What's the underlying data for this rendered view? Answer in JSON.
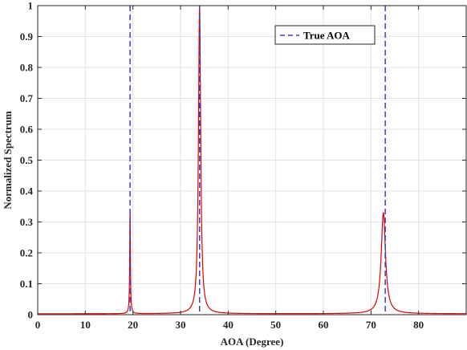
{
  "chart_data": {
    "type": "line",
    "xlabel": "AOA (Degree)",
    "ylabel": "Normalized Spectrum",
    "xlim": [
      0,
      90
    ],
    "ylim": [
      0,
      1
    ],
    "xticks": [
      0,
      10,
      20,
      30,
      40,
      50,
      60,
      70,
      80
    ],
    "yticks": [
      0,
      0.1,
      0.2,
      0.3,
      0.4,
      0.5,
      0.6,
      0.7,
      0.8,
      0.9,
      1
    ],
    "xtick_labels": [
      "0",
      "10",
      "20",
      "30",
      "40",
      "50",
      "60",
      "70",
      "80"
    ],
    "ytick_labels": [
      "0",
      "0.1",
      "0.2",
      "0.3",
      "0.4",
      "0.5",
      "0.6",
      "0.7",
      "0.8",
      "0.9",
      "1"
    ],
    "grid": true,
    "legend_position": "top-right",
    "series": [
      {
        "kind": "spectrum",
        "color": "#e00000",
        "peaks": [
          {
            "x": 19.4,
            "y": 0.33
          },
          {
            "x": 34.0,
            "y": 1.0
          },
          {
            "x": 72.6,
            "y": 0.33
          }
        ],
        "baseline": 0.003
      },
      {
        "name": "True AOA",
        "kind": "vertical-dashed",
        "color": "#3b3bd6",
        "x": [
          19.4,
          34.0,
          73.0
        ]
      }
    ]
  }
}
